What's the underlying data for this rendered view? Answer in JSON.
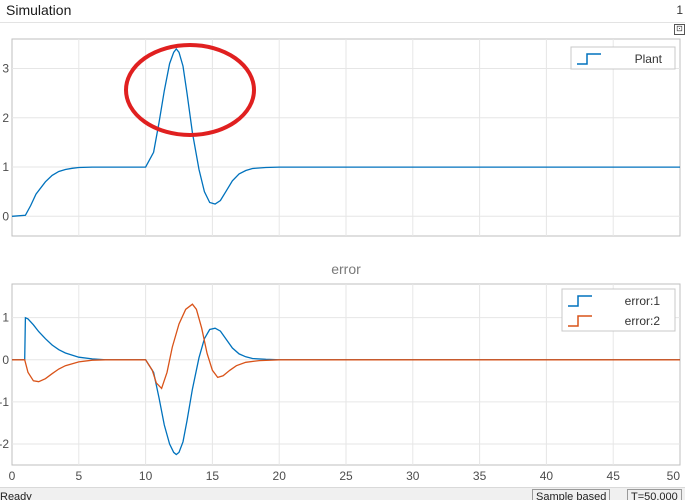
{
  "window": {
    "title": "Simulation",
    "title_suffix": "1",
    "undock_glyph": "⊡"
  },
  "chart_data": [
    {
      "type": "line",
      "title": "",
      "xlim": [
        0,
        50
      ],
      "ylim": [
        -0.4,
        3.6
      ],
      "x_ticks": [
        0,
        5,
        10,
        15,
        20,
        25,
        30,
        35,
        40,
        45,
        50
      ],
      "y_ticks": [
        0,
        1,
        2,
        3
      ],
      "grid": true,
      "legend_position": "top-right",
      "series": [
        {
          "name": "Plant",
          "color": "#0072BD",
          "x": [
            0,
            1,
            1.4,
            1.8,
            2.5,
            3.0,
            3.5,
            4.0,
            4.5,
            5.0,
            6.0,
            7.0,
            8.0,
            10.0,
            10.6,
            11.0,
            11.4,
            11.8,
            12.1,
            12.3,
            12.5,
            12.8,
            13.1,
            13.5,
            14.0,
            14.4,
            14.8,
            15.2,
            15.6,
            16.0,
            16.5,
            17.0,
            17.5,
            18.0,
            19.0,
            20.0,
            22.0,
            50.0
          ],
          "y": [
            0,
            0.02,
            0.22,
            0.45,
            0.7,
            0.83,
            0.91,
            0.95,
            0.975,
            0.99,
            1.0,
            1.0,
            1.0,
            1.0,
            1.3,
            1.9,
            2.55,
            3.1,
            3.33,
            3.4,
            3.33,
            3.05,
            2.5,
            1.7,
            0.95,
            0.5,
            0.28,
            0.25,
            0.32,
            0.5,
            0.72,
            0.86,
            0.93,
            0.97,
            0.99,
            1.0,
            1.0,
            1.0
          ]
        }
      ]
    },
    {
      "type": "line",
      "title": "error",
      "xlim": [
        0,
        50
      ],
      "ylim": [
        -2.5,
        1.8
      ],
      "x_ticks": [
        0,
        5,
        10,
        15,
        20,
        25,
        30,
        35,
        40,
        45,
        50
      ],
      "x_tick_labels": [
        "0",
        "5",
        "10",
        "15",
        "20",
        "25",
        "30",
        "35",
        "40",
        "45",
        "50"
      ],
      "y_ticks": [
        -2,
        -1,
        0,
        1
      ],
      "grid": true,
      "legend_position": "top-right",
      "series": [
        {
          "name": "error:1",
          "color": "#0072BD",
          "x": [
            0,
            0.95,
            1.0,
            1.2,
            1.6,
            2.0,
            2.5,
            3.0,
            3.5,
            4.0,
            5.0,
            6.0,
            7.0,
            8.0,
            10.0,
            10.6,
            11.0,
            11.4,
            11.8,
            12.1,
            12.3,
            12.5,
            12.8,
            13.1,
            13.5,
            14.0,
            14.4,
            14.8,
            15.2,
            15.6,
            16.0,
            16.5,
            17.0,
            17.5,
            18.0,
            19.0,
            20.0,
            50.0
          ],
          "y": [
            0,
            0,
            1.0,
            0.97,
            0.83,
            0.67,
            0.5,
            0.35,
            0.24,
            0.16,
            0.06,
            0.02,
            0.0,
            0.0,
            0.0,
            -0.3,
            -0.9,
            -1.55,
            -2.0,
            -2.2,
            -2.25,
            -2.2,
            -1.95,
            -1.45,
            -0.7,
            0.05,
            0.5,
            0.72,
            0.75,
            0.68,
            0.5,
            0.28,
            0.14,
            0.07,
            0.03,
            0.01,
            0.0,
            0.0
          ]
        },
        {
          "name": "error:2",
          "color": "#D95319",
          "x": [
            0,
            0.95,
            1.2,
            1.6,
            2.0,
            2.5,
            3.0,
            3.5,
            4.0,
            5.0,
            6.0,
            7.0,
            8.0,
            10.0,
            10.5,
            10.8,
            11.2,
            11.6,
            12.0,
            12.5,
            13.0,
            13.5,
            13.8,
            14.2,
            14.6,
            15.0,
            15.4,
            15.8,
            16.3,
            16.8,
            17.5,
            18.5,
            20.0,
            50.0
          ],
          "y": [
            0,
            0,
            -0.3,
            -0.5,
            -0.52,
            -0.45,
            -0.33,
            -0.22,
            -0.14,
            -0.05,
            -0.01,
            0.0,
            0.0,
            0.0,
            -0.25,
            -0.55,
            -0.68,
            -0.3,
            0.3,
            0.85,
            1.2,
            1.32,
            1.2,
            0.75,
            0.15,
            -0.25,
            -0.42,
            -0.38,
            -0.25,
            -0.14,
            -0.06,
            -0.02,
            0.0,
            0.0
          ]
        }
      ]
    }
  ],
  "annotation": {
    "type": "ellipse",
    "color": "#E02020",
    "highlighted_region": "Plant peak near t≈12"
  },
  "status": {
    "ready": "Ready",
    "mode": "Sample based",
    "time": "T=50.000"
  }
}
